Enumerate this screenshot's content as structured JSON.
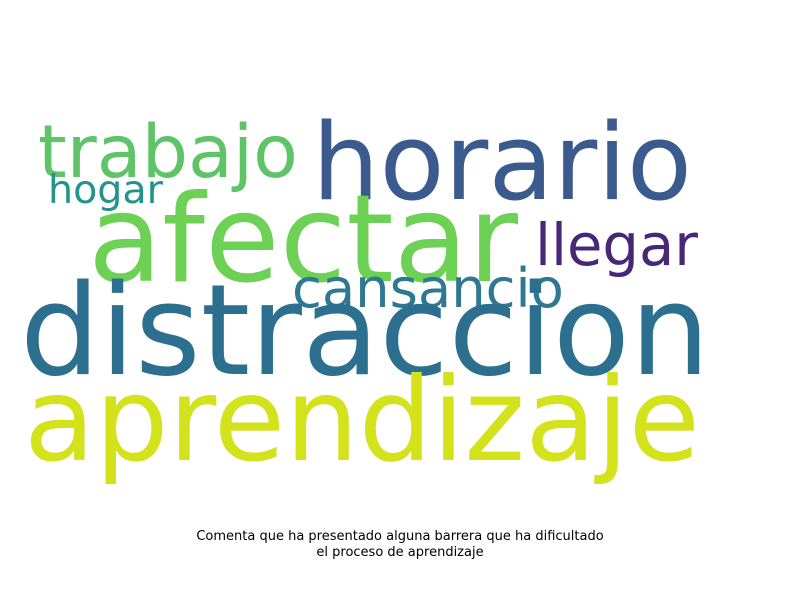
{
  "words": [
    {
      "text": "horario",
      "color": "#3b5a8e"
    },
    {
      "text": "trabajo",
      "color": "#5fc468"
    },
    {
      "text": "hogar",
      "color": "#24948b"
    },
    {
      "text": "afectar",
      "color": "#6dd156"
    },
    {
      "text": "llegar",
      "color": "#482777"
    },
    {
      "text": "cansancio",
      "color": "#2f7891"
    },
    {
      "text": "distraccion",
      "color": "#2c6f8e"
    },
    {
      "text": "aprendizaje",
      "color": "#d3e21b"
    }
  ],
  "caption": {
    "line1": "Comenta que ha presentado alguna barrera que ha dificultado",
    "line2": "el proceso de aprendizaje"
  },
  "background": "#ffffff"
}
